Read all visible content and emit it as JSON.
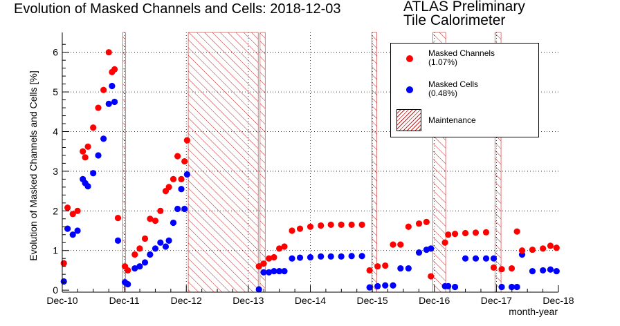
{
  "title": "Evolution of Masked Channels and Cells: 2018-12-03",
  "atlas": {
    "line1": "ATLAS Preliminary",
    "line2": "Tile Calorimeter"
  },
  "legend": {
    "channels_label": "Masked Channels",
    "channels_value": "(1.07%)",
    "cells_label": "Masked Cells",
    "cells_value": "(0.48%)",
    "maintenance_label": "Maintenance"
  },
  "colors": {
    "channels": "#ff0000",
    "cells": "#0000ff",
    "maintenance": "#c81e1e",
    "axis": "#000000",
    "grid": "#000000"
  },
  "chart_data": {
    "type": "scatter",
    "title": "Evolution of Masked Channels and Cells: 2018-12-03",
    "xlabel": "month-year",
    "ylabel": "Evolution of Masked Channels and Cells [%]",
    "x_axis_labels": [
      "Dec-10",
      "Dec-11",
      "Dec-12",
      "Dec-13",
      "Dec-14",
      "Dec-15",
      "Dec-16",
      "Dec-17",
      "Dec-18"
    ],
    "xlim": [
      "2010-12-01",
      "2018-12-01"
    ],
    "ylim": [
      -0.05,
      6.5
    ],
    "y_ticks": [
      0,
      1,
      2,
      3,
      4,
      5,
      6
    ],
    "grid": true,
    "legend_position": "top-right",
    "maintenance_periods": [
      [
        "2011-11-22",
        "2011-12-08"
      ],
      [
        "2012-12-12",
        "2014-01-28"
      ],
      [
        "2014-02-08",
        "2014-03-10"
      ],
      [
        "2015-11-28",
        "2015-12-28"
      ],
      [
        "2016-11-22",
        "2017-02-05"
      ],
      [
        "2017-11-22",
        "2017-12-28"
      ]
    ],
    "series": [
      {
        "name": "Masked Channels (1.07%)",
        "x": [
          "2010-12-10",
          "2011-01-01",
          "2011-02-01",
          "2011-03-01",
          "2011-04-01",
          "2011-04-15",
          "2011-05-01",
          "2011-06-01",
          "2011-07-01",
          "2011-08-01",
          "2011-09-01",
          "2011-09-20",
          "2011-10-05",
          "2011-10-25",
          "2011-12-05",
          "2011-12-22",
          "2012-02-01",
          "2012-03-01",
          "2012-04-01",
          "2012-05-01",
          "2012-06-01",
          "2012-07-01",
          "2012-08-01",
          "2012-08-20",
          "2012-09-15",
          "2012-10-10",
          "2012-11-01",
          "2012-11-20",
          "2012-12-05",
          "2014-02-01",
          "2014-03-01",
          "2014-04-01",
          "2014-05-01",
          "2014-06-01",
          "2014-07-01",
          "2014-08-15",
          "2014-10-01",
          "2014-12-01",
          "2015-02-01",
          "2015-04-01",
          "2015-06-01",
          "2015-08-01",
          "2015-10-01",
          "2015-11-15",
          "2016-01-01",
          "2016-02-15",
          "2016-04-01",
          "2016-05-15",
          "2016-07-01",
          "2016-09-01",
          "2016-10-15",
          "2016-11-10",
          "2017-02-01",
          "2017-02-20",
          "2017-04-01",
          "2017-06-01",
          "2017-08-01",
          "2017-10-01",
          "2017-11-15",
          "2018-01-01",
          "2018-03-01",
          "2018-04-01",
          "2018-05-01",
          "2018-07-01",
          "2018-09-01",
          "2018-10-15",
          "2018-11-20"
        ],
        "y": [
          0.68,
          2.08,
          1.92,
          2.0,
          3.5,
          3.35,
          3.62,
          4.1,
          4.6,
          5.05,
          6.0,
          5.5,
          5.57,
          1.82,
          0.6,
          0.5,
          0.9,
          1.05,
          1.3,
          1.8,
          1.75,
          2.0,
          2.5,
          2.6,
          2.8,
          3.38,
          2.8,
          3.25,
          3.78,
          0.6,
          0.67,
          0.8,
          0.83,
          1.05,
          1.1,
          1.5,
          1.55,
          1.6,
          1.63,
          1.65,
          1.65,
          1.65,
          1.65,
          0.5,
          0.6,
          0.62,
          1.15,
          1.15,
          1.6,
          1.68,
          1.72,
          0.35,
          1.2,
          1.4,
          1.42,
          1.44,
          1.45,
          1.46,
          0.57,
          0.53,
          0.55,
          1.48,
          1.0,
          1.02,
          1.05,
          1.12,
          1.07
        ]
      },
      {
        "name": "Masked Cells (0.48%)",
        "x": [
          "2010-12-10",
          "2011-01-01",
          "2011-02-01",
          "2011-03-01",
          "2011-04-01",
          "2011-04-15",
          "2011-05-01",
          "2011-06-01",
          "2011-07-01",
          "2011-08-01",
          "2011-09-01",
          "2011-09-20",
          "2011-10-05",
          "2011-10-25",
          "2011-12-05",
          "2011-12-22",
          "2012-02-01",
          "2012-03-01",
          "2012-04-01",
          "2012-05-01",
          "2012-06-01",
          "2012-07-01",
          "2012-08-01",
          "2012-08-20",
          "2012-09-15",
          "2012-10-10",
          "2012-11-01",
          "2012-11-20",
          "2012-12-05",
          "2014-02-01",
          "2014-03-01",
          "2014-04-01",
          "2014-05-01",
          "2014-06-01",
          "2014-07-01",
          "2014-08-15",
          "2014-10-01",
          "2014-12-01",
          "2015-02-01",
          "2015-04-01",
          "2015-06-01",
          "2015-08-01",
          "2015-10-01",
          "2015-11-15",
          "2016-01-01",
          "2016-02-15",
          "2016-04-01",
          "2016-05-15",
          "2016-07-01",
          "2016-09-01",
          "2016-10-15",
          "2016-11-10",
          "2017-02-01",
          "2017-02-20",
          "2017-04-01",
          "2017-06-01",
          "2017-08-01",
          "2017-10-01",
          "2017-11-15",
          "2018-01-01",
          "2018-03-01",
          "2018-04-01",
          "2018-05-01",
          "2018-07-01",
          "2018-09-01",
          "2018-10-15",
          "2018-11-20"
        ],
        "y": [
          0.22,
          1.55,
          1.4,
          1.5,
          2.8,
          2.7,
          2.62,
          2.95,
          3.4,
          3.82,
          4.7,
          5.15,
          4.75,
          1.25,
          0.2,
          0.15,
          0.55,
          0.6,
          0.7,
          0.9,
          1.05,
          1.2,
          1.1,
          1.25,
          1.7,
          2.05,
          2.55,
          2.05,
          2.92,
          0.02,
          0.45,
          0.45,
          0.48,
          0.48,
          0.48,
          0.8,
          0.82,
          0.83,
          0.85,
          0.85,
          0.85,
          0.86,
          0.86,
          0.07,
          0.1,
          0.12,
          0.12,
          0.55,
          0.55,
          0.95,
          1.02,
          1.05,
          0.1,
          0.1,
          0.08,
          0.8,
          0.8,
          0.8,
          0.8,
          0.08,
          0.08,
          0.08,
          0.9,
          0.48,
          0.5,
          0.52,
          0.48
        ]
      }
    ]
  }
}
